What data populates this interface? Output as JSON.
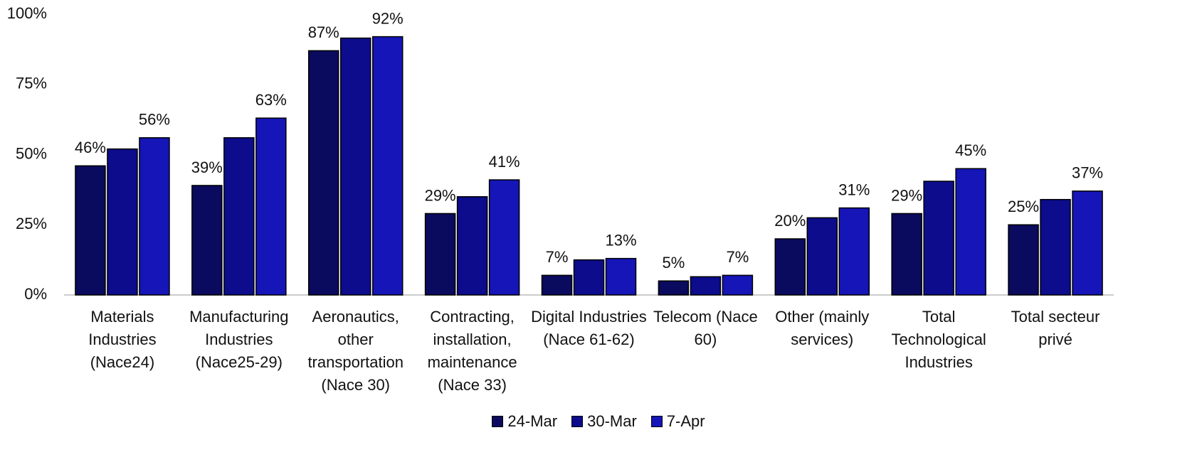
{
  "chart_data": {
    "type": "bar",
    "categories": [
      "Materials Industries (Nace24)",
      "Manufacturing Industries (Nace25-29)",
      "Aeronautics, other transportation (Nace 30)",
      "Contracting, installation, maintenance (Nace 33)",
      "Digital Industries (Nace 61-62)",
      "Telecom (Nace 60)",
      "Other (mainly services)",
      "Total Technological Industries",
      "Total secteur privé"
    ],
    "series": [
      {
        "name": "24-Mar",
        "color": "#0a0a5e",
        "values": [
          46,
          39,
          87,
          29,
          7,
          5,
          20,
          29,
          25
        ],
        "value_labels": [
          "46%",
          "39%",
          "87%",
          "29%",
          "7%",
          "5%",
          "20%",
          "29%",
          "25%"
        ]
      },
      {
        "name": "30-Mar",
        "color": "#0c0c8c",
        "values": [
          52,
          56,
          91.5,
          35,
          12.5,
          6.5,
          27.5,
          40.5,
          34
        ]
      },
      {
        "name": "7-Apr",
        "color": "#1515b8",
        "values": [
          56,
          63,
          92,
          41,
          13,
          7,
          31,
          45,
          37
        ],
        "value_labels": [
          "56%",
          "63%",
          "92%",
          "41%",
          "13%",
          "7%",
          "31%",
          "45%",
          "37%"
        ]
      }
    ],
    "ylim": [
      0,
      100
    ],
    "yticks": [
      {
        "value": 0,
        "label": "0%"
      },
      {
        "value": 25,
        "label": "25%"
      },
      {
        "value": 50,
        "label": "50%"
      },
      {
        "value": 75,
        "label": "75%"
      },
      {
        "value": 100,
        "label": "100%"
      }
    ],
    "grid": false,
    "legend": "bottom"
  }
}
